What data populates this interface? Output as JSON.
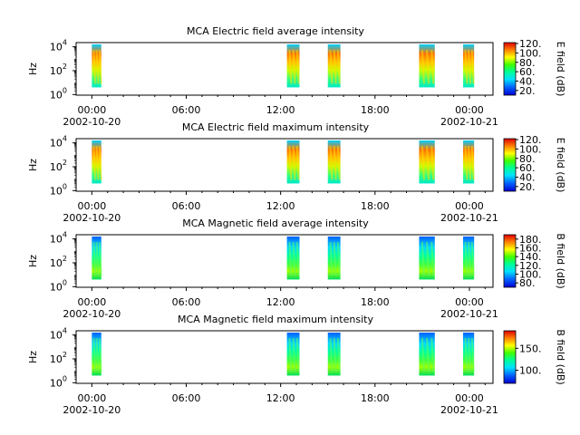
{
  "chart_data": [
    {
      "type": "heatmap",
      "title": "MCA  Electric field average intensity",
      "ylabel": "Hz",
      "yscale": "log",
      "yticks": [
        {
          "exp": "0"
        },
        {
          "exp": "2"
        },
        {
          "exp": "4"
        }
      ],
      "xticks": [
        "00:00",
        "06:00",
        "12:00",
        "18:00",
        "00:00"
      ],
      "xdates": [
        "2002-10-20",
        "2002-10-21"
      ],
      "colorbar": {
        "label": "E field (dB)",
        "range": [
          10,
          122
        ],
        "ticks": [
          "20.",
          "40.",
          "60.",
          "80.",
          "100.",
          "120."
        ]
      },
      "intervals_hours": [
        [
          0.0,
          0.6
        ],
        [
          12.4,
          13.2
        ],
        [
          15.0,
          15.8
        ],
        [
          20.8,
          21.8
        ],
        [
          23.6,
          24.3
        ]
      ],
      "tone": "high"
    },
    {
      "type": "heatmap",
      "title": "MCA  Electric field maximum intensity",
      "ylabel": "Hz",
      "yscale": "log",
      "yticks": [
        {
          "exp": "0"
        },
        {
          "exp": "2"
        },
        {
          "exp": "4"
        }
      ],
      "xticks": [
        "00:00",
        "06:00",
        "12:00",
        "18:00",
        "00:00"
      ],
      "xdates": [
        "2002-10-20",
        "2002-10-21"
      ],
      "colorbar": {
        "label": "E field (dB)",
        "range": [
          10,
          122
        ],
        "ticks": [
          "20.",
          "40.",
          "60.",
          "80.",
          "100.",
          "120."
        ]
      },
      "intervals_hours": [
        [
          0.0,
          0.6
        ],
        [
          12.4,
          13.2
        ],
        [
          15.0,
          15.8
        ],
        [
          20.8,
          21.8
        ],
        [
          23.6,
          24.3
        ]
      ],
      "tone": "high"
    },
    {
      "type": "heatmap",
      "title": "MCA  Magnetic field average intensity",
      "ylabel": "Hz",
      "yscale": "log",
      "yticks": [
        {
          "exp": "0"
        },
        {
          "exp": "2"
        },
        {
          "exp": "4"
        }
      ],
      "xticks": [
        "00:00",
        "06:00",
        "12:00",
        "18:00",
        "00:00"
      ],
      "xdates": [
        "2002-10-20",
        "2002-10-21"
      ],
      "colorbar": {
        "label": "B field (dB)",
        "range": [
          70,
          190
        ],
        "ticks": [
          "80.",
          "100.",
          "120.",
          "140.",
          "160.",
          "180."
        ]
      },
      "intervals_hours": [
        [
          0.0,
          0.6
        ],
        [
          12.4,
          13.2
        ],
        [
          15.0,
          15.8
        ],
        [
          20.8,
          21.8
        ],
        [
          23.6,
          24.3
        ]
      ],
      "tone": "mid"
    },
    {
      "type": "heatmap",
      "title": "MCA  Magnetic field maximum intensity",
      "ylabel": "Hz",
      "yscale": "log",
      "yticks": [
        {
          "exp": "0"
        },
        {
          "exp": "2"
        },
        {
          "exp": "4"
        }
      ],
      "xticks": [
        "00:00",
        "06:00",
        "12:00",
        "18:00",
        "00:00"
      ],
      "xdates": [
        "2002-10-20",
        "2002-10-21"
      ],
      "colorbar": {
        "label": "B field (dB)",
        "range": [
          70,
          190
        ],
        "ticks": [
          "100.",
          "150."
        ]
      },
      "intervals_hours": [
        [
          0.0,
          0.6
        ],
        [
          12.4,
          13.2
        ],
        [
          15.0,
          15.8
        ],
        [
          20.8,
          21.8
        ],
        [
          23.6,
          24.3
        ]
      ],
      "tone": "mid"
    }
  ]
}
